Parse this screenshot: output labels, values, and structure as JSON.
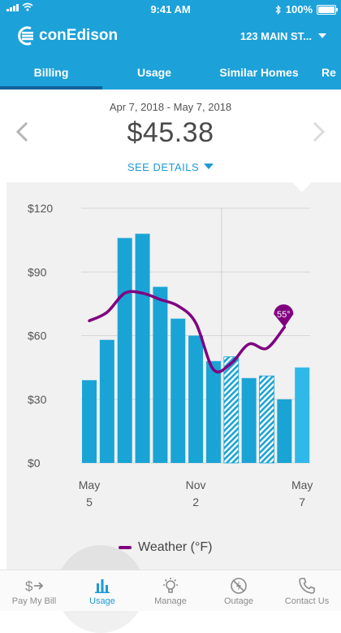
{
  "status_bar": {
    "time": "9:41 AM",
    "battery": "100%"
  },
  "header": {
    "brand": "conEdison",
    "account": "123 MAIN ST..."
  },
  "tabs": [
    {
      "label": "Billing",
      "active": true
    },
    {
      "label": "Usage",
      "active": false
    },
    {
      "label": "Similar Homes",
      "active": false
    },
    {
      "label": "Re",
      "active": false
    }
  ],
  "bill": {
    "period": "Apr 7, 2018 - May 7, 2018",
    "amount": "$45.38",
    "details_label": "SEE DETAILS"
  },
  "icons": {
    "prev": "chevron-left-icon",
    "next": "chevron-right-icon",
    "details": "caret-down-icon"
  },
  "colors": {
    "brand_blue": "#1da1d9",
    "bar_blue": "#1aa4d6",
    "bar_current": "#2fb9e8",
    "weather_line": "#800080",
    "link_blue": "#1d9ad6"
  },
  "chart_data": {
    "type": "bar",
    "y_ticks": [
      "$0",
      "$30",
      "$60",
      "$90",
      "$120"
    ],
    "ylim": [
      0,
      120
    ],
    "x_ticks": [
      {
        "line1": "May",
        "line2": "5",
        "index": 0
      },
      {
        "line1": "Nov",
        "line2": "2",
        "index": 6
      },
      {
        "line1": "May",
        "line2": "7",
        "index": 12
      }
    ],
    "bill_values": [
      39,
      58,
      106,
      108,
      83,
      68,
      60,
      48,
      50,
      40,
      41,
      30,
      45
    ],
    "bar_style": [
      "solid",
      "solid",
      "solid",
      "solid",
      "solid",
      "solid",
      "solid",
      "solid",
      "hatched",
      "solid",
      "hatched",
      "solid",
      "current"
    ],
    "weather": {
      "name": "Weather (°F)",
      "values": [
        67,
        71,
        80,
        80,
        77,
        74,
        66,
        44,
        47,
        56,
        54,
        64
      ],
      "ylim": [
        0,
        120
      ],
      "last_label": "55°"
    },
    "marker_index": 7,
    "grid": true
  },
  "bottom_nav": [
    {
      "label": "Pay My Bill",
      "icon": "dollar-arrow-icon",
      "active": false
    },
    {
      "label": "Usage",
      "icon": "bar-chart-icon",
      "active": true
    },
    {
      "label": "Manage",
      "icon": "lightbulb-icon",
      "active": false
    },
    {
      "label": "Outage",
      "icon": "outage-icon",
      "active": false
    },
    {
      "label": "Contact Us",
      "icon": "phone-icon",
      "active": false
    }
  ]
}
